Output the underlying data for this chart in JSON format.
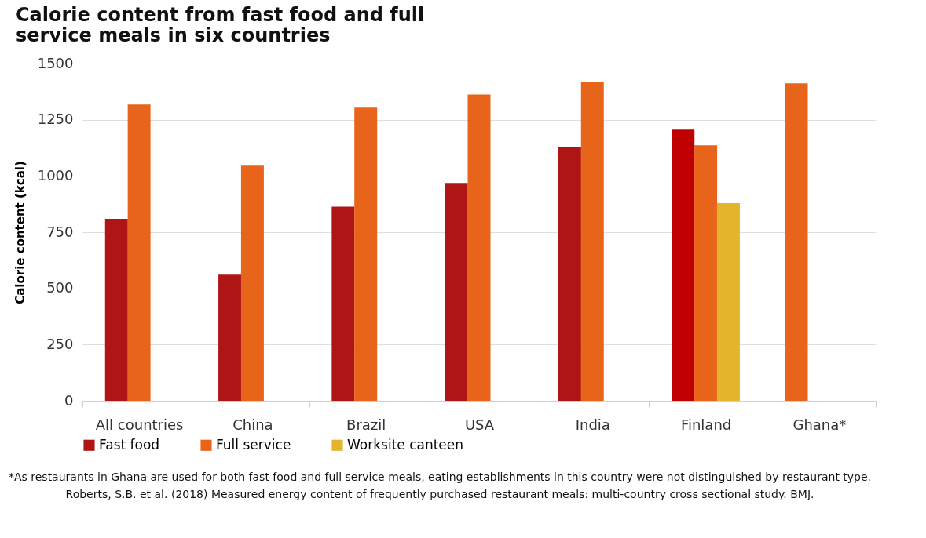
{
  "chart_data": {
    "type": "bar",
    "title": [
      "Calorie content from fast food and full",
      "service meals in six countries"
    ],
    "ylabel": "Calorie content (kcal)",
    "categories": [
      "All countries",
      "China",
      "Brazil",
      "USA",
      "India",
      "Finland",
      "Ghana*"
    ],
    "series": [
      {
        "name": "Fast food",
        "color": "#b01515",
        "colors": [
          "#b01515",
          "#b01515",
          "#b01515",
          "#b01515",
          "#b01515",
          "#c00000",
          "#e8641a"
        ],
        "values": [
          809,
          561,
          863,
          969,
          1130,
          1206,
          1412
        ]
      },
      {
        "name": "Full service",
        "color": "#e8641a",
        "values": [
          1318,
          1046,
          1304,
          1362,
          1416,
          1136,
          null
        ]
      },
      {
        "name": "Worksite canteen",
        "color": "#e3b52c",
        "values": [
          null,
          null,
          null,
          null,
          null,
          879,
          null
        ]
      }
    ],
    "ylim": [
      0,
      1500
    ],
    "yticks": [
      0,
      250,
      500,
      750,
      {
        "value": 1000,
        "label": "1000"
      },
      {
        "value": 1250,
        "label": "1250"
      },
      {
        "value": 1500,
        "label": "1500"
      }
    ],
    "grid": "y",
    "legend": "bottom",
    "annotations": [
      "*As restaurants in Ghana are used for both fast food and full service meals, eating establishments in this country were not distinguished by restaurant type.",
      "Roberts, S.B. et al. (2018) Measured energy content of frequently purchased restaurant meals: multi-country cross sectional study. BMJ."
    ]
  }
}
